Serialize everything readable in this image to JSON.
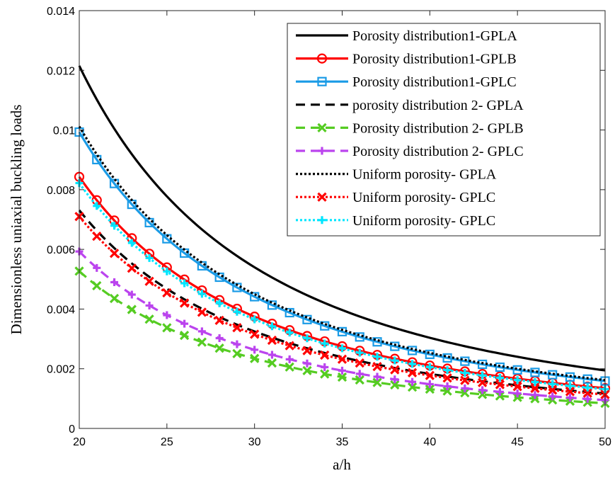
{
  "chart_data": {
    "type": "line",
    "xlabel": "a/h",
    "ylabel": "Dimensionless uniaxial buckling loads",
    "xlim": [
      20,
      50
    ],
    "ylim": [
      0,
      0.014
    ],
    "xticks": [
      20,
      25,
      30,
      35,
      40,
      45,
      50
    ],
    "xtick_labels": [
      "20",
      "25",
      "30",
      "35",
      "40",
      "45",
      "50"
    ],
    "yticks": [
      0,
      0.002,
      0.004,
      0.006,
      0.008,
      0.01,
      0.012,
      0.014
    ],
    "ytick_labels": [
      "0",
      "0.002",
      "0.004",
      "0.006",
      "0.008",
      "0.01",
      "0.012",
      "0.014"
    ],
    "grid": false,
    "legend_position": "top-right",
    "x": [
      20,
      21,
      22,
      23,
      24,
      25,
      26,
      27,
      28,
      29,
      30,
      31,
      32,
      33,
      34,
      35,
      36,
      37,
      38,
      39,
      40,
      41,
      42,
      43,
      44,
      45,
      46,
      47,
      48,
      49,
      50
    ],
    "series": [
      {
        "name": "Porosity distribution1-GPLA",
        "color": "#000000",
        "dash": "solid",
        "marker": "none",
        "y_at_20": 0.01215,
        "y_at_50": 0.00195
      },
      {
        "name": "Porosity distribution1-GPLB",
        "color": "#ff0000",
        "dash": "solid",
        "marker": "circle",
        "y_at_20": 0.00843,
        "y_at_50": 0.00135
      },
      {
        "name": "Porosity distribution1-GPLC",
        "color": "#1a9be6",
        "dash": "solid",
        "marker": "square",
        "y_at_20": 0.00993,
        "y_at_50": 0.00159
      },
      {
        "name": "porosity distribution 2- GPLA",
        "color": "#000000",
        "dash": "dashed",
        "marker": "none",
        "y_at_20": 0.00731,
        "y_at_50": 0.00117
      },
      {
        "name": "Porosity distribution 2- GPLB",
        "color": "#55cc22",
        "dash": "dashed",
        "marker": "x",
        "y_at_20": 0.00527,
        "y_at_50": 0.00084
      },
      {
        "name": "Porosity distribution 2- GPLC",
        "color": "#bb44ee",
        "dash": "dashed",
        "marker": "plus",
        "y_at_20": 0.00593,
        "y_at_50": 0.00095
      },
      {
        "name": "Uniform porosity- GPLA",
        "color": "#000000",
        "dash": "dotted",
        "marker": "none",
        "y_at_20": 0.01012,
        "y_at_50": 0.00162
      },
      {
        "name": "Uniform porosity- GPLC",
        "color": "#ff0000",
        "dash": "dotted",
        "marker": "x",
        "y_at_20": 0.0071,
        "y_at_50": 0.00114
      },
      {
        "name": "Uniform porosity- GPLC",
        "color": "#00e6ff",
        "dash": "dotted",
        "marker": "plus",
        "y_at_20": 0.00822,
        "y_at_50": 0.00131
      }
    ]
  }
}
